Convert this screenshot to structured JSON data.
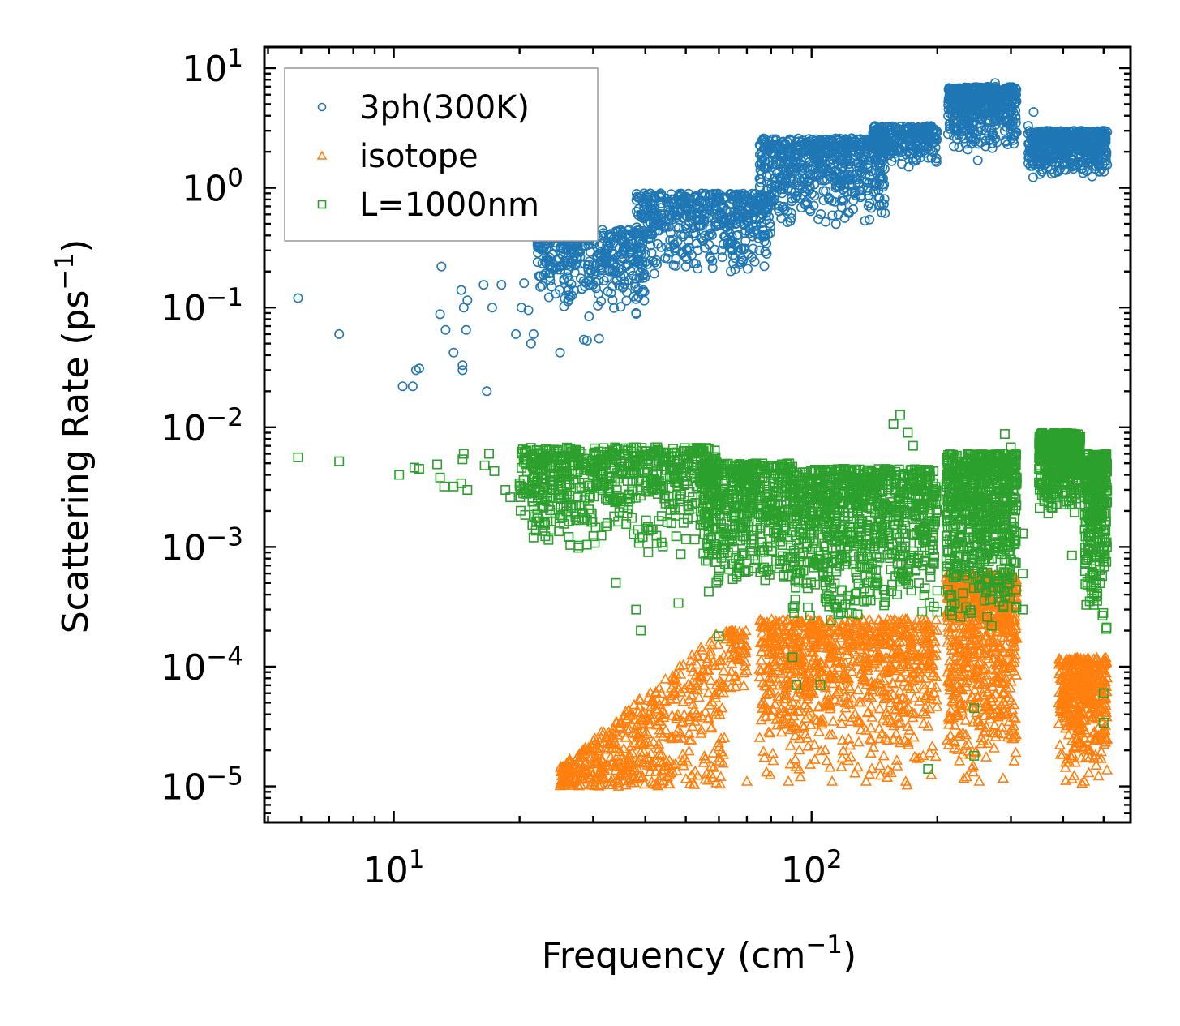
{
  "chart_data": {
    "type": "scatter",
    "xscale": "log",
    "yscale": "log",
    "xlim": [
      4.9,
      580
    ],
    "ylim": [
      5e-06,
      15
    ],
    "grid": false,
    "legend_position": "top-left",
    "xlabel": {
      "text": "Frequency (cm",
      "sup": "−1",
      "suffix": ")"
    },
    "ylabel": {
      "text": "Scattering Rate (ps",
      "sup": "−1",
      "suffix": ")"
    },
    "xticks": [
      {
        "value": 10,
        "base": "10",
        "exp": "1"
      },
      {
        "value": 100,
        "base": "10",
        "exp": "2"
      }
    ],
    "yticks": [
      {
        "value": 10,
        "base": "10",
        "exp": "1"
      },
      {
        "value": 1,
        "base": "10",
        "exp": "0"
      },
      {
        "value": 0.1,
        "base": "10",
        "exp": "−1"
      },
      {
        "value": 0.01,
        "base": "10",
        "exp": "−2"
      },
      {
        "value": 0.001,
        "base": "10",
        "exp": "−3"
      },
      {
        "value": 0.0001,
        "base": "10",
        "exp": "−4"
      },
      {
        "value": 1e-05,
        "base": "10",
        "exp": "−5"
      }
    ],
    "series": [
      {
        "name": "3ph(300K)",
        "marker": "circle",
        "color": "#1f77b4",
        "points": [
          [
            5.9,
            0.12
          ],
          [
            7.4,
            0.06
          ],
          [
            10.5,
            0.022
          ],
          [
            11.1,
            0.022
          ],
          [
            11.3,
            0.03
          ],
          [
            11.5,
            0.031
          ],
          [
            13.0,
            0.22
          ],
          [
            12.9,
            0.088
          ],
          [
            13.3,
            0.065
          ],
          [
            13.9,
            0.042
          ],
          [
            14.5,
            0.14
          ],
          [
            14.6,
            0.03
          ],
          [
            14.6,
            0.033
          ],
          [
            14.7,
            0.1
          ],
          [
            14.9,
            0.065
          ],
          [
            15.0,
            0.115
          ],
          [
            16.4,
            0.155
          ],
          [
            16.7,
            0.02
          ],
          [
            17.2,
            0.1
          ],
          [
            18.1,
            0.155
          ],
          [
            19.6,
            0.06
          ],
          [
            20.2,
            0.1
          ],
          [
            20.5,
            0.16
          ],
          [
            21.0,
            0.095
          ],
          [
            21.3,
            0.05
          ],
          [
            21.6,
            0.06
          ],
          [
            22.2,
            0.32
          ],
          [
            23.5,
            0.25
          ],
          [
            25.0,
            0.042
          ],
          [
            26.0,
            0.18
          ],
          [
            28.5,
            0.054
          ],
          [
            29.0,
            0.053
          ],
          [
            31.0,
            0.055
          ],
          [
            33.0,
            0.35
          ],
          [
            38.0,
            0.09
          ],
          [
            40.0,
            0.28
          ],
          [
            45.0,
            0.32
          ],
          [
            50.0,
            0.22
          ],
          [
            55.0,
            0.36
          ],
          [
            60.0,
            0.5
          ],
          [
            70.0,
            0.6
          ],
          [
            75.0,
            0.3
          ],
          [
            85.0,
            0.9
          ],
          [
            95.0,
            1.3
          ],
          [
            110.0,
            0.8
          ],
          [
            120.0,
            1.6
          ],
          [
            140.0,
            2.3
          ],
          [
            155.0,
            3.2
          ],
          [
            160.0,
            2.8
          ],
          [
            170.0,
            2.5
          ],
          [
            180.0,
            2.0
          ],
          [
            190.0,
            2.2
          ],
          [
            220.0,
            4.0
          ],
          [
            230.0,
            3.2
          ],
          [
            240.0,
            2.6
          ],
          [
            250.0,
            1.7
          ],
          [
            260.0,
            5.0
          ],
          [
            270.0,
            6.0
          ],
          [
            275.0,
            7.5
          ],
          [
            285.0,
            4.5
          ],
          [
            300.0,
            6.5
          ],
          [
            330.0,
            3.3
          ],
          [
            340.0,
            4.3
          ],
          [
            360.0,
            2.8
          ],
          [
            380.0,
            2.3
          ],
          [
            400.0,
            2.0
          ],
          [
            420.0,
            1.5
          ],
          [
            440.0,
            1.8
          ],
          [
            460.0,
            2.0
          ],
          [
            480.0,
            2.3
          ],
          [
            500.0,
            2.1
          ]
        ],
        "dense_bands": [
          {
            "x": [
              22,
              40
            ],
            "y": [
              0.08,
              0.45
            ],
            "n": 380
          },
          {
            "x": [
              38,
              80
            ],
            "y": [
              0.18,
              0.9
            ],
            "n": 520
          },
          {
            "x": [
              75,
              150
            ],
            "y": [
              0.45,
              2.6
            ],
            "n": 620
          },
          {
            "x": [
              140,
              200
            ],
            "y": [
              1.4,
              3.3
            ],
            "n": 260
          },
          {
            "x": [
              212,
              310
            ],
            "y": [
              2.0,
              7.0
            ],
            "n": 520
          },
          {
            "x": [
              330,
              510
            ],
            "y": [
              1.2,
              3.0
            ],
            "n": 480
          }
        ]
      },
      {
        "name": "isotope",
        "marker": "triangle",
        "color": "#ff7f0e",
        "points": [
          [
            70.0,
            1.1e-05
          ],
          [
            88.0,
            1.1e-05
          ],
          [
            94.0,
            1.2e-05
          ],
          [
            112.0,
            1.1e-05
          ],
          [
            135.0,
            1.1e-05
          ],
          [
            155.0,
            1.3e-05
          ],
          [
            168.0,
            1.1e-05
          ],
          [
            235.0,
            1.2e-05
          ],
          [
            252.0,
            1.1e-05
          ],
          [
            305.0,
            3.2e-05
          ],
          [
            305.0,
            2.5e-05
          ],
          [
            305.0,
            4.8e-05
          ],
          [
            450.0,
            1.1e-05
          ],
          [
            480.0,
            1.5e-05
          ]
        ],
        "dense_bands": [
          {
            "x": [
              25,
              62
            ],
            "y": [
              1e-05,
              0.00022
            ],
            "n": 520,
            "trend": "rising"
          },
          {
            "x": [
              62,
              70
            ],
            "y": [
              6e-05,
              0.0002
            ],
            "n": 60
          },
          {
            "x": [
              75,
              200
            ],
            "y": [
              1e-05,
              0.00025
            ],
            "n": 900
          },
          {
            "x": [
              210,
              310
            ],
            "y": [
              1e-05,
              0.0006
            ],
            "n": 700
          },
          {
            "x": [
              390,
              510
            ],
            "y": [
              1e-05,
              0.00012
            ],
            "n": 420
          }
        ]
      },
      {
        "name": "L=1000nm",
        "marker": "square",
        "color": "#2ca02c",
        "points": [
          [
            5.9,
            0.0056
          ],
          [
            7.4,
            0.0052
          ],
          [
            10.3,
            0.004
          ],
          [
            11.2,
            0.0046
          ],
          [
            11.5,
            0.0045
          ],
          [
            12.7,
            0.0049
          ],
          [
            12.9,
            0.0038
          ],
          [
            13.2,
            0.0032
          ],
          [
            13.9,
            0.0032
          ],
          [
            14.5,
            0.0034
          ],
          [
            14.6,
            0.0054
          ],
          [
            14.7,
            0.006
          ],
          [
            15.0,
            0.003
          ],
          [
            16.5,
            0.0048
          ],
          [
            16.9,
            0.006
          ],
          [
            17.4,
            0.0043
          ],
          [
            18.5,
            0.003
          ],
          [
            19.0,
            0.0026
          ],
          [
            20.0,
            0.0034
          ],
          [
            34.0,
            0.0005
          ],
          [
            38.0,
            0.0003
          ],
          [
            39.0,
            0.0002
          ],
          [
            48.0,
            0.00034
          ],
          [
            60.0,
            0.00018
          ],
          [
            90.0,
            0.00012
          ],
          [
            92.0,
            7e-05
          ],
          [
            105.0,
            7e-05
          ],
          [
            163.0,
            0.0127
          ],
          [
            157.0,
            0.0106
          ],
          [
            170.0,
            0.009
          ],
          [
            175.0,
            0.007
          ],
          [
            190.0,
            1.4e-05
          ],
          [
            245.0,
            1.8e-05
          ],
          [
            245.0,
            4.5e-05
          ],
          [
            290.0,
            0.0088
          ],
          [
            300.0,
            0.0068
          ],
          [
            320.0,
            0.0013
          ],
          [
            320.0,
            0.0006
          ],
          [
            320.0,
            0.0003
          ],
          [
            420.0,
            0.00085
          ],
          [
            500.0,
            3.4e-05
          ],
          [
            500.0,
            6e-05
          ]
        ],
        "dense_bands": [
          {
            "x": [
              20,
              60
            ],
            "y": [
              0.0008,
              0.0068
            ],
            "n": 700
          },
          {
            "x": [
              55,
              90
            ],
            "y": [
              0.0004,
              0.005
            ],
            "n": 500
          },
          {
            "x": [
              90,
              200
            ],
            "y": [
              0.0002,
              0.0045
            ],
            "n": 900
          },
          {
            "x": [
              210,
              310
            ],
            "y": [
              0.0002,
              0.006
            ],
            "n": 700
          },
          {
            "x": [
              350,
              440
            ],
            "y": [
              0.0018,
              0.009
            ],
            "n": 500
          },
          {
            "x": [
              450,
              510
            ],
            "y": [
              0.0002,
              0.006
            ],
            "n": 360
          }
        ]
      }
    ]
  }
}
